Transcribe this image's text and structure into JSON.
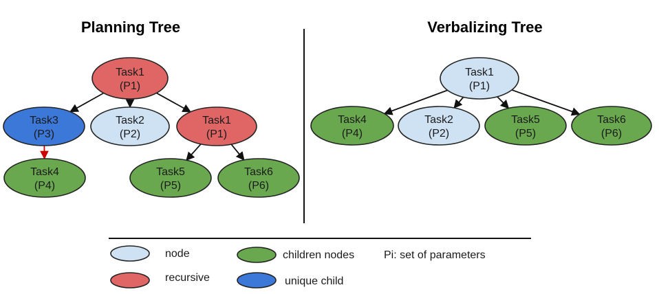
{
  "titles": {
    "planning": "Planning Tree",
    "verbalizing": "Verbalizing Tree"
  },
  "colors": {
    "node": "#cfe2f3",
    "recursive": "#e06666",
    "children": "#6aa84f",
    "unique": "#3c78d8",
    "unique_edge": "#cc0000"
  },
  "planning_nodes": [
    {
      "id": "p_task1_root",
      "task": "Task1",
      "param": "(P1)",
      "type": "recursive"
    },
    {
      "id": "p_task3",
      "task": "Task3",
      "param": "(P3)",
      "type": "unique"
    },
    {
      "id": "p_task2",
      "task": "Task2",
      "param": "(P2)",
      "type": "node"
    },
    {
      "id": "p_task1_child",
      "task": "Task1",
      "param": "(P1)",
      "type": "recursive"
    },
    {
      "id": "p_task4",
      "task": "Task4",
      "param": "(P4)",
      "type": "children"
    },
    {
      "id": "p_task5",
      "task": "Task5",
      "param": "(P5)",
      "type": "children"
    },
    {
      "id": "p_task6",
      "task": "Task6",
      "param": "(P6)",
      "type": "children"
    }
  ],
  "verbalizing_nodes": [
    {
      "id": "v_task1",
      "task": "Task1",
      "param": "(P1)",
      "type": "node"
    },
    {
      "id": "v_task4",
      "task": "Task4",
      "param": "(P4)",
      "type": "children"
    },
    {
      "id": "v_task2",
      "task": "Task2",
      "param": "(P2)",
      "type": "node"
    },
    {
      "id": "v_task5",
      "task": "Task5",
      "param": "(P5)",
      "type": "children"
    },
    {
      "id": "v_task6",
      "task": "Task6",
      "param": "(P6)",
      "type": "children"
    }
  ],
  "edges": [
    {
      "from": "p_task1_root",
      "to": "p_task3",
      "kind": "normal"
    },
    {
      "from": "p_task1_root",
      "to": "p_task2",
      "kind": "normal"
    },
    {
      "from": "p_task1_root",
      "to": "p_task1_child",
      "kind": "normal"
    },
    {
      "from": "p_task3",
      "to": "p_task4",
      "kind": "unique"
    },
    {
      "from": "p_task1_child",
      "to": "p_task5",
      "kind": "normal"
    },
    {
      "from": "p_task1_child",
      "to": "p_task6",
      "kind": "normal"
    },
    {
      "from": "v_task1",
      "to": "v_task4",
      "kind": "normal"
    },
    {
      "from": "v_task1",
      "to": "v_task2",
      "kind": "normal"
    },
    {
      "from": "v_task1",
      "to": "v_task5",
      "kind": "normal"
    },
    {
      "from": "v_task1",
      "to": "v_task6",
      "kind": "normal"
    }
  ],
  "legend": {
    "node": "node",
    "children": "children nodes",
    "params": "Pi: set of parameters",
    "recursive": "recursive",
    "unique": "unique child"
  }
}
